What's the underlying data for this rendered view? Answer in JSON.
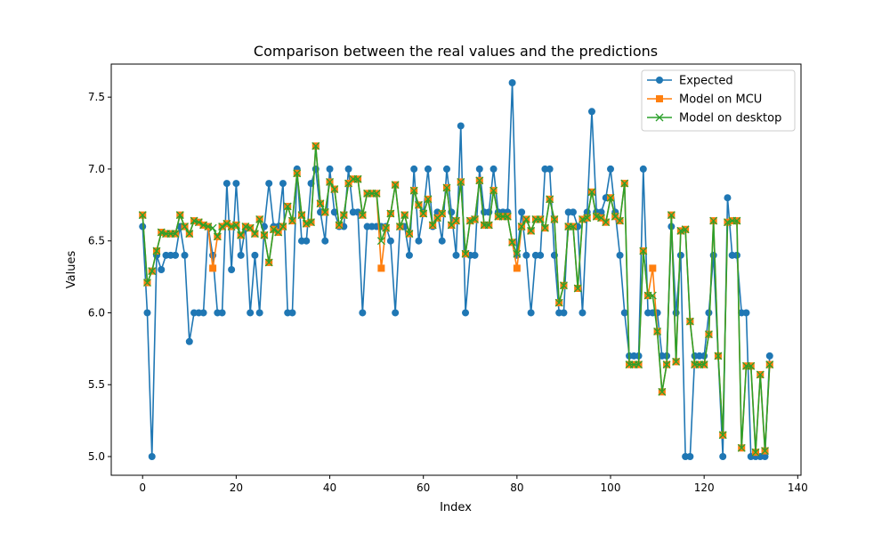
{
  "chart_data": {
    "type": "line",
    "title": "Comparison between the real values and the predictions",
    "xlabel": "Index",
    "ylabel": "Values",
    "xlim": [
      -6.7,
      140.7
    ],
    "ylim": [
      4.87,
      7.73
    ],
    "xticks": [
      0,
      20,
      40,
      60,
      80,
      100,
      120,
      140
    ],
    "yticks": [
      5.0,
      5.5,
      6.0,
      6.5,
      7.0,
      7.5
    ],
    "ytick_labels": [
      "5.0",
      "5.5",
      "6.0",
      "6.5",
      "7.0",
      "7.5"
    ],
    "legend_position": "top-right",
    "series": [
      {
        "name": "Expected",
        "color": "#1f77b4",
        "marker": "circle",
        "values": [
          6.6,
          6.0,
          5.0,
          6.4,
          6.3,
          6.4,
          6.4,
          6.4,
          6.6,
          6.4,
          5.8,
          6.0,
          6.0,
          6.0,
          6.6,
          6.4,
          6.0,
          6.0,
          6.9,
          6.3,
          6.9,
          6.4,
          6.6,
          6.0,
          6.4,
          6.0,
          6.6,
          6.9,
          6.6,
          6.6,
          6.9,
          6.0,
          6.0,
          7.0,
          6.5,
          6.5,
          6.9,
          7.0,
          6.7,
          6.5,
          7.0,
          6.7,
          6.6,
          6.6,
          7.0,
          6.7,
          6.7,
          6.0,
          6.6,
          6.6,
          6.6,
          6.6,
          6.6,
          6.5,
          6.0,
          6.6,
          6.6,
          6.4,
          7.0,
          6.5,
          6.7,
          7.0,
          6.6,
          6.7,
          6.5,
          7.0,
          6.7,
          6.4,
          7.3,
          6.0,
          6.4,
          6.4,
          7.0,
          6.7,
          6.7,
          7.0,
          6.7,
          6.7,
          6.7,
          7.6,
          6.4,
          6.7,
          6.4,
          6.0,
          6.4,
          6.4,
          7.0,
          7.0,
          6.4,
          6.0,
          6.0,
          6.7,
          6.7,
          6.6,
          6.0,
          6.7,
          7.4,
          6.7,
          6.7,
          6.8,
          7.0,
          6.7,
          6.4,
          6.0,
          5.7,
          5.7,
          5.7,
          7.0,
          6.0,
          6.0,
          6.0,
          5.7,
          5.7,
          6.6,
          6.0,
          6.4,
          5.0,
          5.0,
          5.7,
          5.7,
          5.7,
          6.0,
          6.4,
          5.7,
          5.0,
          6.8,
          6.4,
          6.4,
          6.0,
          6.0,
          5.0,
          5.0,
          5.0,
          5.0,
          5.7
        ]
      },
      {
        "name": "Model on MCU",
        "color": "#ff7f0e",
        "marker": "square",
        "values": [
          6.68,
          6.21,
          6.29,
          6.43,
          6.56,
          6.55,
          6.55,
          6.55,
          6.68,
          6.6,
          6.55,
          6.64,
          6.63,
          6.61,
          6.6,
          6.31,
          6.53,
          6.6,
          6.62,
          6.6,
          6.61,
          6.54,
          6.6,
          6.59,
          6.55,
          6.65,
          6.54,
          6.35,
          6.58,
          6.56,
          6.6,
          6.74,
          6.64,
          6.97,
          6.68,
          6.62,
          6.63,
          7.16,
          6.76,
          6.7,
          6.91,
          6.86,
          6.61,
          6.68,
          6.9,
          6.93,
          6.93,
          6.68,
          6.83,
          6.83,
          6.83,
          6.31,
          6.59,
          6.69,
          6.89,
          6.6,
          6.68,
          6.55,
          6.85,
          6.75,
          6.69,
          6.79,
          6.61,
          6.66,
          6.69,
          6.87,
          6.61,
          6.64,
          6.91,
          6.41,
          6.64,
          6.65,
          6.92,
          6.61,
          6.61,
          6.85,
          6.67,
          6.67,
          6.67,
          6.49,
          6.31,
          6.6,
          6.65,
          6.57,
          6.65,
          6.65,
          6.59,
          6.79,
          6.65,
          6.07,
          6.19,
          6.6,
          6.6,
          6.17,
          6.65,
          6.66,
          6.84,
          6.67,
          6.66,
          6.63,
          6.8,
          6.67,
          6.64,
          6.9,
          5.64,
          5.64,
          5.64,
          6.43,
          6.12,
          6.31,
          5.87,
          5.45,
          5.64,
          6.68,
          5.66,
          6.57,
          6.58,
          5.94,
          5.64,
          5.64,
          5.64,
          5.85,
          6.64,
          5.7,
          5.15,
          6.63,
          6.64,
          6.64,
          5.06,
          5.63,
          5.63,
          5.03,
          5.57,
          5.04,
          5.64
        ]
      },
      {
        "name": "Model on desktop",
        "color": "#2ca02c",
        "marker": "x",
        "values": [
          6.68,
          6.21,
          6.29,
          6.43,
          6.56,
          6.55,
          6.55,
          6.55,
          6.68,
          6.6,
          6.55,
          6.64,
          6.63,
          6.61,
          6.6,
          6.59,
          6.53,
          6.6,
          6.62,
          6.6,
          6.61,
          6.54,
          6.6,
          6.59,
          6.55,
          6.65,
          6.54,
          6.35,
          6.58,
          6.56,
          6.6,
          6.74,
          6.64,
          6.97,
          6.68,
          6.62,
          6.63,
          7.16,
          6.76,
          6.7,
          6.91,
          6.86,
          6.61,
          6.68,
          6.9,
          6.93,
          6.93,
          6.68,
          6.83,
          6.83,
          6.83,
          6.5,
          6.59,
          6.69,
          6.89,
          6.6,
          6.68,
          6.55,
          6.85,
          6.75,
          6.69,
          6.79,
          6.61,
          6.66,
          6.69,
          6.87,
          6.61,
          6.64,
          6.91,
          6.41,
          6.64,
          6.65,
          6.92,
          6.61,
          6.61,
          6.85,
          6.67,
          6.67,
          6.67,
          6.49,
          6.41,
          6.6,
          6.65,
          6.57,
          6.65,
          6.65,
          6.59,
          6.79,
          6.65,
          6.07,
          6.19,
          6.6,
          6.6,
          6.17,
          6.65,
          6.66,
          6.84,
          6.67,
          6.66,
          6.63,
          6.8,
          6.67,
          6.64,
          6.9,
          5.64,
          5.64,
          5.64,
          6.43,
          6.12,
          6.12,
          5.87,
          5.45,
          5.64,
          6.68,
          5.66,
          6.57,
          6.58,
          5.94,
          5.64,
          5.64,
          5.64,
          5.85,
          6.64,
          5.7,
          5.15,
          6.63,
          6.64,
          6.64,
          5.06,
          5.63,
          5.63,
          5.03,
          5.57,
          5.04,
          5.64
        ]
      }
    ]
  }
}
